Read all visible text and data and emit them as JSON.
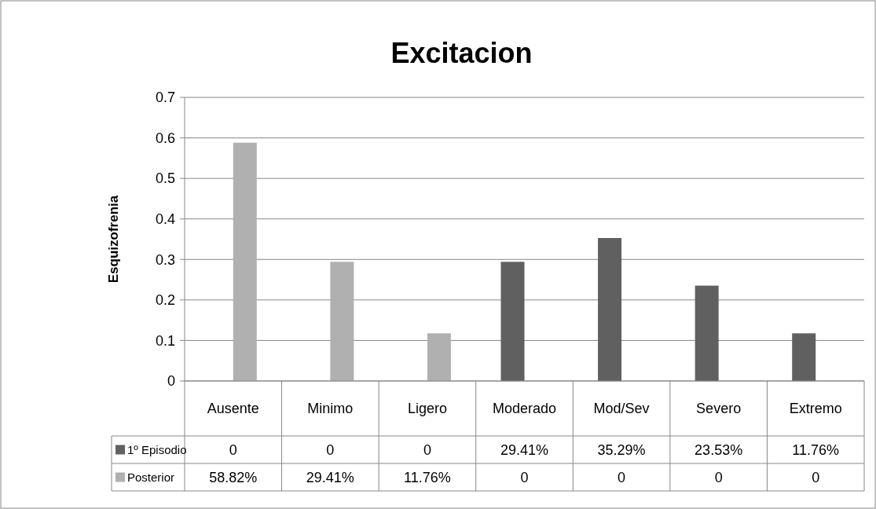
{
  "chart_data": {
    "type": "bar",
    "title": "Excitacion",
    "ylabel": "Esquizofrenia",
    "categories": [
      "Ausente",
      "Minimo",
      "Ligero",
      "Moderado",
      "Mod/Sev",
      "Severo",
      "Extremo"
    ],
    "series": [
      {
        "name": "1º Episodio",
        "color": "#606060",
        "values": [
          0,
          0,
          0,
          0.2941,
          0.3529,
          0.2353,
          0.1176
        ],
        "value_labels": [
          "0",
          "0",
          "0",
          "29.41%",
          "35.29%",
          "23.53%",
          "11.76%"
        ]
      },
      {
        "name": "Posterior",
        "color": "#b0b0b0",
        "values": [
          0.5882,
          0.2941,
          0.1176,
          0,
          0,
          0,
          0
        ],
        "value_labels": [
          "58.82%",
          "29.41%",
          "11.76%",
          "0",
          "0",
          "0",
          "0"
        ]
      }
    ],
    "ylim": [
      0,
      0.7
    ],
    "yticks": [
      0,
      0.1,
      0.2,
      0.3,
      0.4,
      0.5,
      0.6,
      0.7
    ],
    "grid": "y",
    "legend": "bottom"
  }
}
